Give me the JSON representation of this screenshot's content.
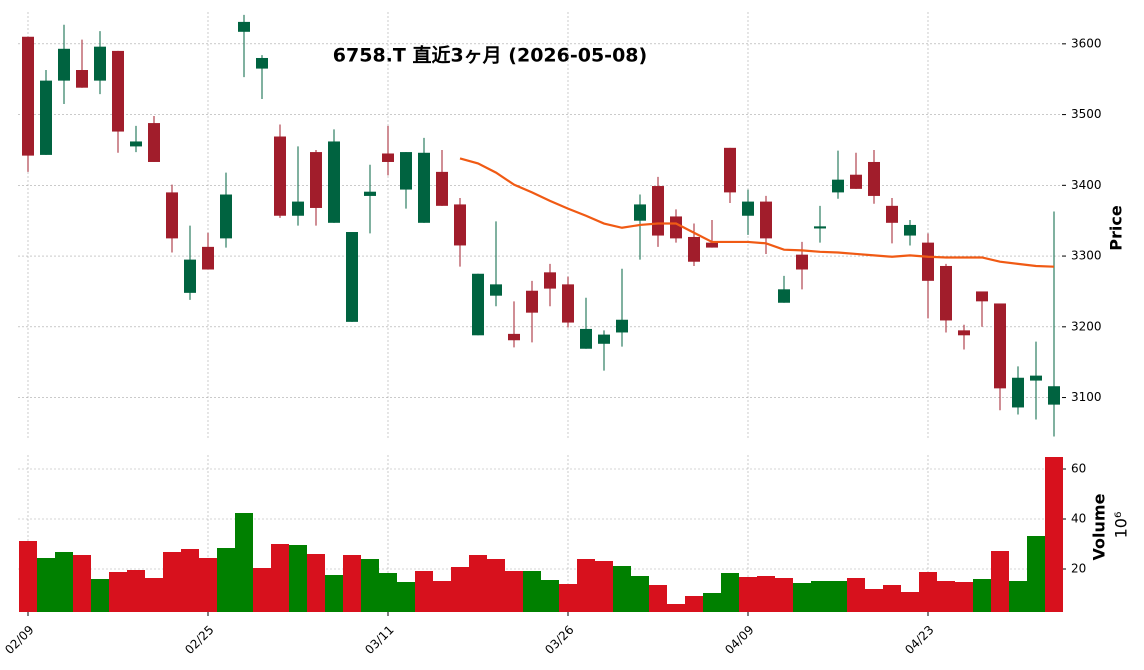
{
  "chart_data": {
    "type": "candlestick",
    "title": "6758.T 直近3ヶ月 (2026-05-08)",
    "ylabel": "Price",
    "categories": [
      "02/09",
      null,
      null,
      null,
      null,
      null,
      null,
      null,
      null,
      null,
      "02/25",
      null,
      null,
      null,
      null,
      null,
      null,
      null,
      null,
      null,
      "03/11",
      null,
      null,
      null,
      null,
      null,
      null,
      null,
      null,
      null,
      "03/26",
      null,
      null,
      null,
      null,
      null,
      null,
      null,
      null,
      null,
      "04/09",
      null,
      null,
      null,
      null,
      null,
      null,
      null,
      null,
      null,
      "04/23",
      null,
      null,
      null,
      null,
      null,
      null,
      null
    ],
    "open": [
      3610,
      3443,
      3548,
      3563,
      3548,
      3590,
      3455,
      3488,
      3390,
      3248,
      3313,
      3325,
      3617,
      3565,
      3469,
      3357,
      3447,
      3347,
      3207,
      3385,
      3445,
      3394,
      3347,
      3419,
      3373,
      3188,
      3244,
      3190,
      3251,
      3277,
      3260,
      3169,
      3176,
      3192,
      3350,
      3399,
      3356,
      3327,
      3319,
      3453,
      3357,
      3377,
      3234,
      3302,
      3339,
      3390,
      3415,
      3433,
      3371,
      3329,
      3319,
      3286,
      3195,
      3250,
      3233,
      3086,
      3124,
      3090
    ],
    "high": [
      3610,
      3563,
      3627,
      3606,
      3618,
      3590,
      3484,
      3498,
      3401,
      3343,
      3333,
      3418,
      3641,
      3584,
      3486,
      3455,
      3450,
      3479,
      3334,
      3429,
      3484,
      3447,
      3467,
      3450,
      3382,
      3275,
      3349,
      3236,
      3265,
      3289,
      3271,
      3241,
      3195,
      3282,
      3387,
      3412,
      3366,
      3346,
      3351,
      3453,
      3394,
      3385,
      3272,
      3320,
      3371,
      3449,
      3446,
      3450,
      3382,
      3351,
      3332,
      3289,
      3203,
      3250,
      3233,
      3144,
      3179,
      3363
    ],
    "low": [
      3419,
      3443,
      3515,
      3538,
      3529,
      3446,
      3447,
      3433,
      3305,
      3238,
      3281,
      3312,
      3553,
      3522,
      3354,
      3343,
      3343,
      3347,
      3207,
      3332,
      3414,
      3367,
      3347,
      3371,
      3285,
      3188,
      3229,
      3171,
      3178,
      3229,
      3199,
      3169,
      3138,
      3172,
      3295,
      3313,
      3319,
      3286,
      3312,
      3375,
      3330,
      3303,
      3234,
      3253,
      3319,
      3381,
      3395,
      3374,
      3318,
      3315,
      3212,
      3192,
      3168,
      3200,
      3082,
      3076,
      3069,
      3045
    ],
    "close": [
      3442,
      3548,
      3593,
      3538,
      3596,
      3476,
      3462,
      3433,
      3325,
      3295,
      3281,
      3387,
      3631,
      3580,
      3357,
      3377,
      3368,
      3462,
      3334,
      3391,
      3433,
      3447,
      3446,
      3371,
      3315,
      3275,
      3260,
      3181,
      3220,
      3254,
      3206,
      3197,
      3189,
      3210,
      3373,
      3329,
      3325,
      3292,
      3312,
      3390,
      3377,
      3325,
      3253,
      3281,
      3342,
      3408,
      3395,
      3385,
      3347,
      3344,
      3265,
      3209,
      3188,
      3236,
      3113,
      3128,
      3131,
      3116
    ],
    "up_color": "#006340",
    "down_color": "#a11d2b",
    "moving_average": {
      "color": "#f05a14",
      "values": [
        null,
        null,
        null,
        null,
        null,
        null,
        null,
        null,
        null,
        null,
        null,
        null,
        null,
        null,
        null,
        null,
        null,
        null,
        null,
        null,
        null,
        null,
        null,
        null,
        3438,
        3431,
        3418,
        3401,
        3390,
        3378,
        3367,
        3357,
        3346,
        3340,
        3344,
        3346,
        3346,
        3333,
        3320,
        3320,
        3320,
        3318,
        3309,
        3308,
        3306,
        3305,
        3303,
        3301,
        3299,
        3301,
        3299,
        3298,
        3298,
        3298,
        3292,
        3289,
        3286,
        3285
      ]
    },
    "ylim": [
      3040,
      3645
    ],
    "yticks": [
      3100,
      3200,
      3300,
      3400,
      3500,
      3600
    ],
    "grid": true,
    "volume": {
      "label": "Volume",
      "exponent": "10⁶",
      "ylim": [
        2.8,
        65.6
      ],
      "yticks": [
        20,
        40,
        60
      ],
      "values": [
        31.2,
        24.4,
        26.8,
        25.6,
        16,
        18.8,
        19.6,
        16.4,
        26.8,
        28,
        24.4,
        28.4,
        42.4,
        20.4,
        30,
        29.6,
        26,
        17.6,
        25.6,
        24,
        18.4,
        14.8,
        19.2,
        15.2,
        20.8,
        25.6,
        24,
        19.2,
        19.2,
        15.6,
        14,
        24,
        23.2,
        21.2,
        17.2,
        13.6,
        6,
        9.2,
        10.4,
        18.4,
        16.8,
        17.2,
        16.4,
        14.4,
        15.2,
        15.2,
        16.4,
        12,
        13.6,
        10.8,
        18.8,
        15.2,
        14.8,
        16,
        27.2,
        15.2,
        33.2,
        64.8
      ],
      "colors": [
        "#d7111d",
        "#008000",
        "#008000",
        "#d7111d",
        "#008000",
        "#d7111d",
        "#d7111d",
        "#d7111d",
        "#d7111d",
        "#d7111d",
        "#d7111d",
        "#008000",
        "#008000",
        "#d7111d",
        "#d7111d",
        "#008000",
        "#d7111d",
        "#008000",
        "#d7111d",
        "#008000",
        "#008000",
        "#008000",
        "#d7111d",
        "#d7111d",
        "#d7111d",
        "#d7111d",
        "#d7111d",
        "#d7111d",
        "#008000",
        "#008000",
        "#d7111d",
        "#d7111d",
        "#d7111d",
        "#008000",
        "#008000",
        "#d7111d",
        "#d7111d",
        "#d7111d",
        "#008000",
        "#008000",
        "#d7111d",
        "#d7111d",
        "#d7111d",
        "#008000",
        "#008000",
        "#008000",
        "#d7111d",
        "#d7111d",
        "#d7111d",
        "#d7111d",
        "#d7111d",
        "#d7111d",
        "#d7111d",
        "#008000",
        "#d7111d",
        "#008000",
        "#008000",
        "#d7111d"
      ]
    }
  }
}
